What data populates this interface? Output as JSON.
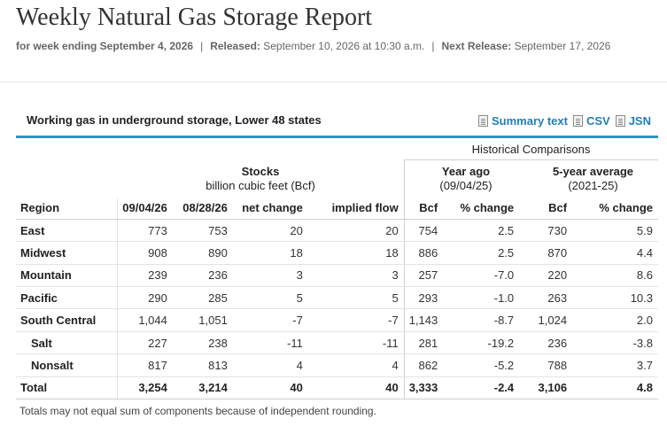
{
  "page": {
    "title": "Weekly Natural Gas Storage Report",
    "meta": {
      "week_label": "for week ending September 4, 2026",
      "released_label": "Released:",
      "released_value": "September 10, 2026 at 10:30 a.m.",
      "next_label": "Next Release:",
      "next_value": "September 17, 2026",
      "separator": "|"
    }
  },
  "table": {
    "caption": "Working gas in underground storage, Lower 48 states",
    "links": {
      "summary": "Summary text",
      "csv": "CSV",
      "json": "JSN"
    },
    "headers": {
      "historical": "Historical Comparisons",
      "stocks_title": "Stocks",
      "stocks_unit": "billion cubic feet (Bcf)",
      "year_ago_title": "Year ago",
      "year_ago_date": "(09/04/25)",
      "five_year_title": "5-year average",
      "five_year_range": "(2021-25)",
      "columns": [
        "Region",
        "09/04/26",
        "08/28/26",
        "net change",
        "implied flow",
        "Bcf",
        "% change",
        "Bcf",
        "% change"
      ]
    },
    "rows": [
      {
        "region": "East",
        "sub": false,
        "values": [
          "773",
          "753",
          "20",
          "20",
          "754",
          "2.5",
          "730",
          "5.9"
        ]
      },
      {
        "region": "Midwest",
        "sub": false,
        "values": [
          "908",
          "890",
          "18",
          "18",
          "886",
          "2.5",
          "870",
          "4.4"
        ]
      },
      {
        "region": "Mountain",
        "sub": false,
        "values": [
          "239",
          "236",
          "3",
          "3",
          "257",
          "-7.0",
          "220",
          "8.6"
        ]
      },
      {
        "region": "Pacific",
        "sub": false,
        "values": [
          "290",
          "285",
          "5",
          "5",
          "293",
          "-1.0",
          "263",
          "10.3"
        ]
      },
      {
        "region": "South Central",
        "sub": false,
        "values": [
          "1,044",
          "1,051",
          "-7",
          "-7",
          "1,143",
          "-8.7",
          "1,024",
          "2.0"
        ]
      },
      {
        "region": "Salt",
        "sub": true,
        "values": [
          "227",
          "238",
          "-11",
          "-11",
          "281",
          "-19.2",
          "236",
          "-3.8"
        ]
      },
      {
        "region": "Nonsalt",
        "sub": true,
        "values": [
          "817",
          "813",
          "4",
          "4",
          "862",
          "-5.2",
          "788",
          "3.7"
        ]
      }
    ],
    "total": {
      "region": "Total",
      "values": [
        "3,254",
        "3,214",
        "40",
        "40",
        "3,333",
        "-2.4",
        "3,106",
        "4.8"
      ]
    },
    "footnote": "Totals may not equal sum of components because of independent rounding."
  },
  "colors": {
    "accent_rule": "#2a95c8",
    "link": "#1f7fb8"
  },
  "icons": [
    "document-icon"
  ]
}
